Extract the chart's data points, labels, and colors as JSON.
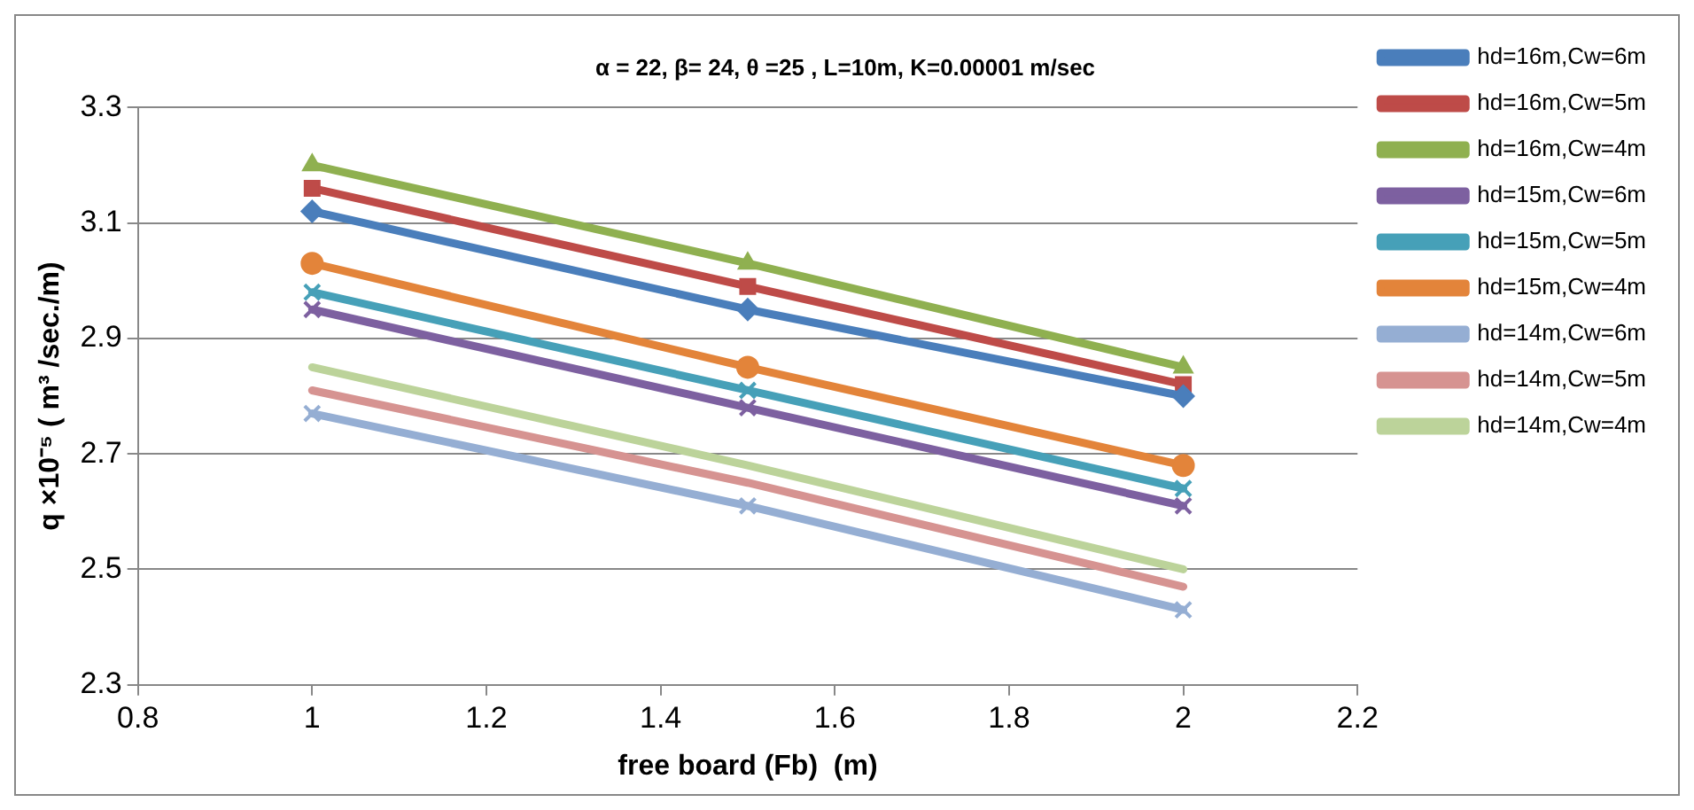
{
  "chart_data": {
    "type": "line",
    "title": "α = 22, β= 24, θ =25 , L=10m, K=0.00001 m/sec",
    "xlabel": "free board (Fb)  (m)",
    "ylabel": "q ×10⁻⁵ ( m³ /sec./m)",
    "x": [
      1,
      1.5,
      2
    ],
    "xlim": [
      0.8,
      2.2
    ],
    "xticks": [
      0.8,
      1,
      1.2,
      1.4,
      1.6,
      1.8,
      2,
      2.2
    ],
    "ylim": [
      2.3,
      3.3
    ],
    "yticks": [
      2.3,
      2.5,
      2.7,
      2.9,
      3.1,
      3.3
    ],
    "grid": "y",
    "legend": "right",
    "series": [
      {
        "name": "hd=16m,Cw=6m",
        "color": "#4a7ebb",
        "marker": "diamond",
        "values": [
          3.12,
          2.95,
          2.8
        ]
      },
      {
        "name": "hd=16m,Cw=5m",
        "color": "#be4b48",
        "marker": "square",
        "values": [
          3.16,
          2.99,
          2.82
        ]
      },
      {
        "name": "hd=16m,Cw=4m",
        "color": "#8fb050",
        "marker": "triangle",
        "values": [
          3.2,
          3.03,
          2.85
        ]
      },
      {
        "name": "hd=15m,Cw=6m",
        "color": "#7d60a0",
        "marker": "cross",
        "values": [
          2.95,
          2.78,
          2.61
        ]
      },
      {
        "name": "hd=15m,Cw=5m",
        "color": "#46a0b8",
        "marker": "cross",
        "values": [
          2.98,
          2.81,
          2.64
        ]
      },
      {
        "name": "hd=15m,Cw=4m",
        "color": "#e3843a",
        "marker": "circle",
        "values": [
          3.03,
          2.85,
          2.68
        ]
      },
      {
        "name": "hd=14m,Cw=6m",
        "color": "#95aed3",
        "marker": "cross",
        "values": [
          2.77,
          2.61,
          2.43
        ]
      },
      {
        "name": "hd=14m,Cw=5m",
        "color": "#d69391",
        "marker": "none",
        "values": [
          2.81,
          2.65,
          2.47
        ]
      },
      {
        "name": "hd=14m,Cw=4m",
        "color": "#bcd39a",
        "marker": "none",
        "values": [
          2.85,
          2.68,
          2.5
        ]
      }
    ]
  }
}
